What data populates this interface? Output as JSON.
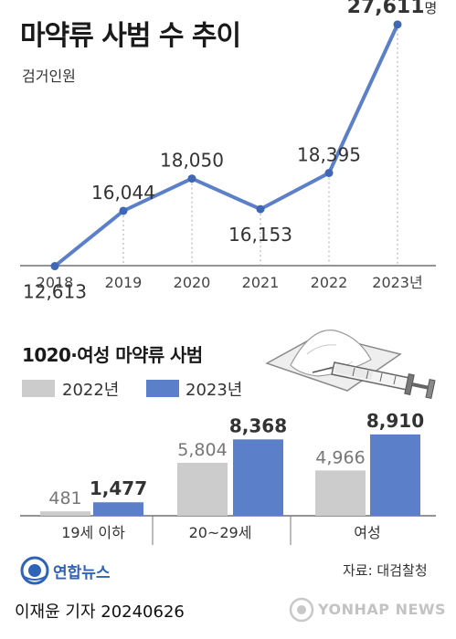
{
  "header": {
    "title": "마약류 사범 수 추이",
    "subtitle": "검거인원"
  },
  "chart_data": [
    {
      "type": "line",
      "title": "마약류 사범 수 추이",
      "ylabel": "검거인원",
      "x": [
        "2018",
        "2019",
        "2020",
        "2021",
        "2022",
        "2023년"
      ],
      "series": [
        {
          "values": [
            12613,
            16044,
            18050,
            16153,
            18395,
            27611
          ]
        }
      ],
      "data_labels": [
        "12,613",
        "16,044",
        "18,050",
        "16,153",
        "18,395",
        "27,611"
      ],
      "unit_suffix": "명",
      "ylim": [
        11000,
        28000
      ],
      "grid": false,
      "line_color": "#5b80c9"
    },
    {
      "type": "bar",
      "title": "1020·여성 마약류 사범",
      "categories": [
        "19세 이하",
        "20~29세",
        "여성"
      ],
      "series": [
        {
          "name": "2022년",
          "values": [
            481,
            5804,
            4966
          ],
          "labels": [
            "481",
            "5,804",
            "4,966"
          ],
          "color": "#cccccc"
        },
        {
          "name": "2023년",
          "values": [
            1477,
            8368,
            8910
          ],
          "labels": [
            "1,477",
            "8,368",
            "8,910"
          ],
          "color": "#5b80c9"
        }
      ],
      "unit_suffix": "명",
      "ylim": [
        0,
        9500
      ]
    }
  ],
  "illustration": {
    "name": "drug-powder-and-syringe"
  },
  "source": "자료: 대검찰청",
  "agency_logo": "연합뉴스",
  "byline": "이재윤 기자  20240626",
  "watermark": "YONHAP NEWS"
}
